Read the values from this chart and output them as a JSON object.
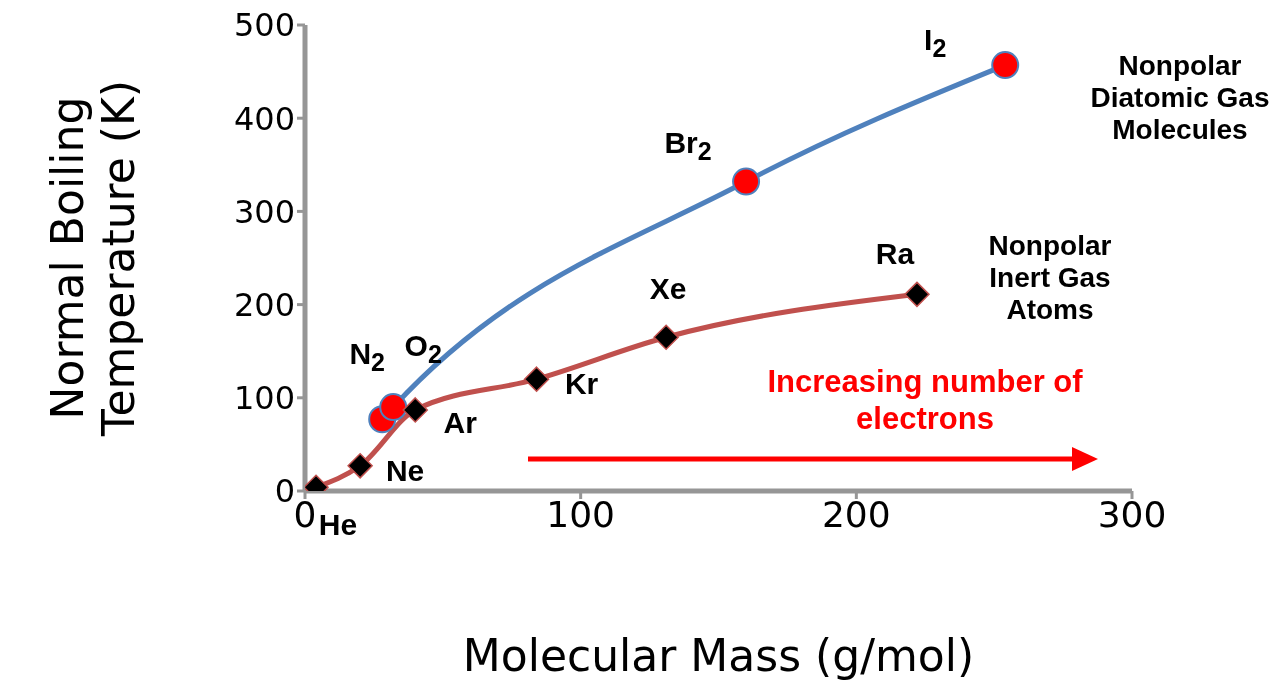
{
  "chart_data": {
    "type": "line",
    "xlabel": "Molecular Mass (g/mol)",
    "ylabel": "Normal Boiling Temperature (K)",
    "xlim": [
      0,
      300
    ],
    "xticks": [
      0,
      100,
      200,
      300
    ],
    "ylim": [
      0,
      500
    ],
    "yticks": [
      0,
      100,
      200,
      300,
      400,
      500
    ],
    "series": [
      {
        "name": "Nonpolar Diatomic Gas Molecules",
        "color": "#4f81bd",
        "marker": "circle",
        "colors": [
          "#ff0000",
          "#ff0000",
          "#ff0000",
          "#ff0000"
        ],
        "x": [
          28,
          32,
          160,
          254
        ],
        "values": [
          77,
          90,
          332,
          457
        ]
      },
      {
        "name": "Nonpolar Inert Gas Atoms",
        "color": "#c0504d",
        "marker": "diamond",
        "colors": [
          "#000000",
          "#000000",
          "#000000",
          "#000000",
          "#000000",
          "#000000"
        ],
        "x": [
          4,
          20,
          40,
          84,
          131,
          222
        ],
        "values": [
          4,
          27,
          87,
          120,
          165,
          211
        ]
      }
    ],
    "annotations": [
      {
        "text": "He",
        "x": 4,
        "y": 4
      },
      {
        "text": "Ne",
        "x": 20,
        "y": 27
      },
      {
        "text": "Ar",
        "x": 40,
        "y": 87
      },
      {
        "text": "Kr",
        "x": 84,
        "y": 120
      },
      {
        "text": "Xe",
        "x": 131,
        "y": 165
      },
      {
        "text": "Ra",
        "x": 222,
        "y": 211
      },
      {
        "text": "N$_{2}$",
        "x": 28,
        "y": 77
      },
      {
        "text": "O$_{2}$",
        "x": 32,
        "y": 90
      },
      {
        "text": "Br$_{2}$",
        "x": 160,
        "y": 332
      },
      {
        "text": "I$_{2}$",
        "x": 254,
        "y": 457
      },
      "Increasing number of electrons"
    ]
  }
}
